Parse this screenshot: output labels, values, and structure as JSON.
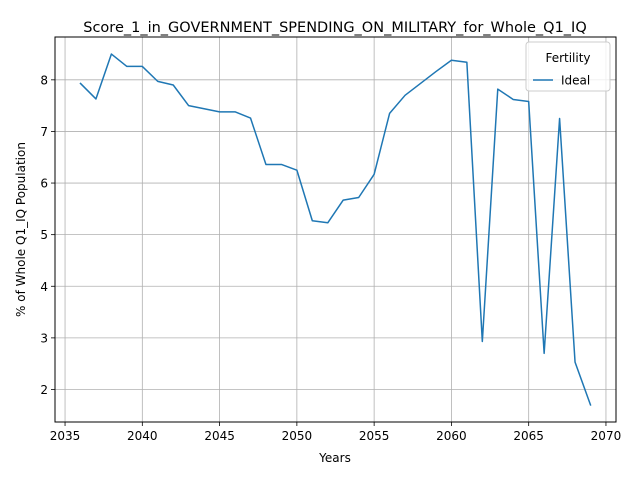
{
  "chart_data": {
    "type": "line",
    "title": "Score_1_in_GOVERNMENT_SPENDING_ON_MILITARY_for_Whole_Q1_IQ",
    "xlabel": "Years",
    "ylabel": "% of Whole Q1_IQ Population",
    "xlim": [
      2034.35,
      2070.65
    ],
    "ylim": [
      1.37,
      8.83
    ],
    "xticks": [
      2035,
      2040,
      2045,
      2050,
      2055,
      2060,
      2065,
      2070
    ],
    "yticks": [
      2,
      3,
      4,
      5,
      6,
      7,
      8
    ],
    "grid": true,
    "legend": {
      "title": "Fertility",
      "placement": "top-right"
    },
    "series": [
      {
        "name": "Ideal",
        "color": "#1f77b4",
        "x": [
          2036,
          2037,
          2038,
          2039,
          2040,
          2041,
          2042,
          2043,
          2044,
          2045,
          2046,
          2047,
          2048,
          2049,
          2050,
          2051,
          2052,
          2053,
          2054,
          2055,
          2056,
          2057,
          2058,
          2059,
          2060,
          2061,
          2062,
          2063,
          2064,
          2065,
          2066,
          2067,
          2068,
          2069
        ],
        "y": [
          7.93,
          7.63,
          8.5,
          8.26,
          8.26,
          7.97,
          7.9,
          7.5,
          7.44,
          7.38,
          7.38,
          7.26,
          6.36,
          6.36,
          6.25,
          5.27,
          5.23,
          5.67,
          5.72,
          6.17,
          7.35,
          7.7,
          7.93,
          8.16,
          8.38,
          8.34,
          2.93,
          7.82,
          7.62,
          7.58,
          2.7,
          7.25,
          2.53,
          1.7
        ]
      }
    ]
  }
}
